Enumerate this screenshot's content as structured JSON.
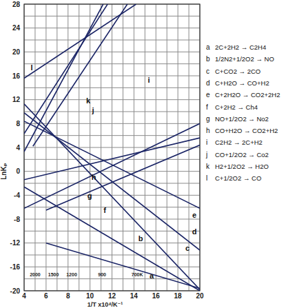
{
  "chart_data": {
    "type": "line",
    "x_label": "1/T x10⁴/K⁻¹",
    "y_label": "LnKₚ",
    "xlim": [
      4,
      20
    ],
    "ylim": [
      -20,
      28
    ],
    "xticks": [
      4,
      6,
      8,
      10,
      12,
      14,
      16,
      18,
      20
    ],
    "yticks": [
      -20,
      -16,
      -12,
      -8,
      -4,
      0,
      4,
      8,
      12,
      16,
      20,
      24,
      28
    ],
    "grid": true,
    "legend": "right",
    "color": "#1b2566",
    "temperature_labels": [
      {
        "value": 5,
        "label": "2000"
      },
      {
        "value": 6.67,
        "label": "1500"
      },
      {
        "value": 8.33,
        "label": "1200"
      },
      {
        "value": 11.1,
        "label": "900"
      },
      {
        "value": 14.3,
        "label": "700K"
      }
    ],
    "series": [
      {
        "name": "a",
        "reaction": "2C+2H2 → C2H4",
        "x": [
          6,
          20
        ],
        "values": [
          -12,
          -19.6
        ]
      },
      {
        "name": "b",
        "reaction": "1/2N2+1/2O2 → NO",
        "x": [
          4,
          20
        ],
        "values": [
          -2.6,
          -20
        ]
      },
      {
        "name": "c",
        "reaction": "C+CO2 → 2CO",
        "x": [
          4,
          20
        ],
        "values": [
          11.3,
          -19.8
        ]
      },
      {
        "name": "d",
        "reaction": "C+H2O → CO+H2",
        "x": [
          4,
          20
        ],
        "values": [
          9.8,
          -13.2
        ]
      },
      {
        "name": "e",
        "reaction": "C+2H2O → CO2+2H2",
        "x": [
          4,
          20
        ],
        "values": [
          8.4,
          -6.2
        ]
      },
      {
        "name": "f",
        "reaction": "C+2H2 → Ch4",
        "x": [
          4,
          20
        ],
        "values": [
          -6.2,
          8
        ]
      },
      {
        "name": "g",
        "reaction": "NO+1/2O2 → No2",
        "x": [
          6,
          20
        ],
        "values": [
          -6.5,
          4.4
        ]
      },
      {
        "name": "h",
        "reaction": "CO+H2O → CO2+H2",
        "x": [
          4,
          20
        ],
        "values": [
          -1.4,
          5.6
        ]
      },
      {
        "name": "i",
        "reaction": "C2H2 → 2C+H2",
        "x": [
          4.8,
          13.4
        ],
        "values": [
          4.2,
          28
        ]
      },
      {
        "name": "j",
        "reaction": "CO+1/2O2 → Co2",
        "x": [
          4,
          11.2
        ],
        "values": [
          3.3,
          28
        ]
      },
      {
        "name": "k",
        "reaction": "H2+1/2O2 → H2O",
        "x": [
          4,
          11.6
        ],
        "values": [
          6.3,
          28
        ]
      },
      {
        "name": "l",
        "reaction": "C+1/2O2 → CO",
        "x": [
          4,
          14.2
        ],
        "values": [
          15.6,
          28
        ]
      }
    ]
  }
}
